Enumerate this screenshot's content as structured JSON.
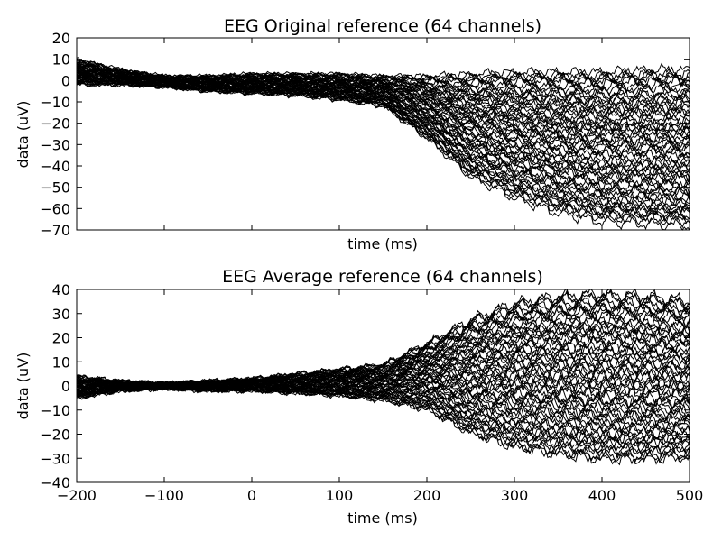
{
  "chart_data": [
    {
      "type": "line",
      "title": "EEG Original reference (64 channels)",
      "xlabel": "time (ms)",
      "ylabel": "data (uV)",
      "xlim": [
        -200,
        500
      ],
      "ylim": [
        -70,
        20
      ],
      "x_ticks": [
        -200,
        -100,
        0,
        100,
        200,
        300,
        400,
        500
      ],
      "x_ticklabels_visible": false,
      "y_ticks": [
        -70,
        -60,
        -50,
        -40,
        -30,
        -20,
        -10,
        0,
        10,
        20
      ],
      "y_ticklabels": [
        "−70",
        "−60",
        "−50",
        "−40",
        "−30",
        "−20",
        "−10",
        "0",
        "10",
        "20"
      ],
      "n_series": 64,
      "series_color": "#000000",
      "grid": false,
      "legend": "none",
      "series_profile": {
        "x": [
          -200,
          -150,
          -100,
          -50,
          0,
          50,
          100,
          150,
          200,
          250,
          300,
          350,
          400,
          450,
          500
        ],
        "upper_envelope": [
          10,
          5,
          2,
          2,
          3,
          3,
          3,
          2,
          2,
          3,
          4,
          4,
          4,
          5,
          5
        ],
        "lower_envelope": [
          -2,
          -2,
          -3,
          -5,
          -6,
          -7,
          -9,
          -12,
          -27,
          -45,
          -55,
          -62,
          -66,
          -67,
          -68
        ]
      }
    },
    {
      "type": "line",
      "title": "EEG Average reference (64 channels)",
      "xlabel": "time (ms)",
      "ylabel": "data (uV)",
      "xlim": [
        -200,
        500
      ],
      "ylim": [
        -40,
        40
      ],
      "x_ticks": [
        -200,
        -100,
        0,
        100,
        200,
        300,
        400,
        500
      ],
      "x_ticklabels": [
        "−200",
        "−100",
        "0",
        "100",
        "200",
        "300",
        "400",
        "500"
      ],
      "y_ticks": [
        -40,
        -30,
        -20,
        -10,
        0,
        10,
        20,
        30,
        40
      ],
      "y_ticklabels": [
        "−40",
        "−30",
        "−20",
        "−10",
        "0",
        "10",
        "20",
        "30",
        "40"
      ],
      "n_series": 64,
      "series_color": "#000000",
      "grid": false,
      "legend": "none",
      "series_profile": {
        "x": [
          -200,
          -150,
          -100,
          -50,
          0,
          50,
          100,
          150,
          200,
          250,
          300,
          350,
          400,
          450,
          500
        ],
        "upper_envelope": [
          4,
          2,
          1,
          2,
          3,
          5,
          7,
          9,
          18,
          28,
          35,
          38,
          39,
          38,
          36
        ],
        "lower_envelope": [
          -5,
          -2,
          -1,
          -2,
          -2,
          -3,
          -4,
          -6,
          -10,
          -20,
          -26,
          -29,
          -31,
          -31,
          -30
        ]
      }
    }
  ]
}
